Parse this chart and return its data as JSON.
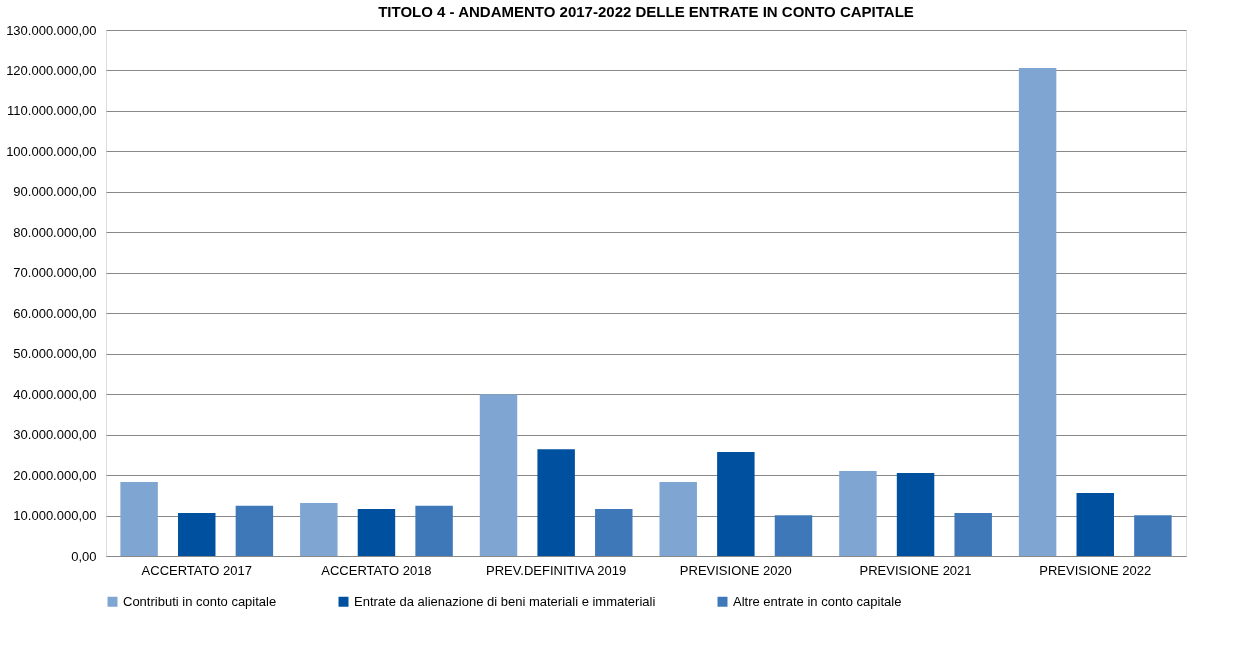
{
  "chart_data": {
    "type": "bar",
    "title": "TITOLO 4 - ANDAMENTO 2017-2022 DELLE ENTRATE IN CONTO CAPITALE",
    "categories": [
      "ACCERTATO 2017",
      "ACCERTATO 2018",
      "PREV.DEFINITIVA 2019",
      "PREVISIONE 2020",
      "PREVISIONE 2021",
      "PREVISIONE 2022"
    ],
    "series": [
      {
        "name": "Contributi in conto capitale",
        "color": "#7fa6d2",
        "values": [
          18300000,
          13100000,
          40000000,
          18300000,
          21000000,
          120600000
        ]
      },
      {
        "name": "Entrate da alienazione di beni materiali e immateriali",
        "color": "#0050a0",
        "values": [
          10600000,
          11600000,
          26400000,
          25700000,
          20500000,
          15600000
        ]
      },
      {
        "name": "Altre entrate in conto capitale",
        "color": "#3f78b8",
        "values": [
          12400000,
          12400000,
          11600000,
          10100000,
          10600000,
          10100000
        ]
      }
    ],
    "ylim": [
      0,
      130000000
    ],
    "yticks": [
      {
        "value": 0,
        "label": "0,00"
      },
      {
        "value": 10000000,
        "label": "10.000.000,00"
      },
      {
        "value": 20000000,
        "label": "20.000.000,00"
      },
      {
        "value": 30000000,
        "label": "30.000.000,00"
      },
      {
        "value": 40000000,
        "label": "40.000.000,00"
      },
      {
        "value": 50000000,
        "label": "50.000.000,00"
      },
      {
        "value": 60000000,
        "label": "60.000.000,00"
      },
      {
        "value": 70000000,
        "label": "70.000.000,00"
      },
      {
        "value": 80000000,
        "label": "80.000.000,00"
      },
      {
        "value": 90000000,
        "label": "90.000.000,00"
      },
      {
        "value": 100000000,
        "label": "100.000.000,00"
      },
      {
        "value": 110000000,
        "label": "110.000.000,00"
      },
      {
        "value": 120000000,
        "label": "120.000.000,00"
      },
      {
        "value": 130000000,
        "label": "130.000.000,00"
      }
    ],
    "grid": "y",
    "legend": "bottom"
  }
}
